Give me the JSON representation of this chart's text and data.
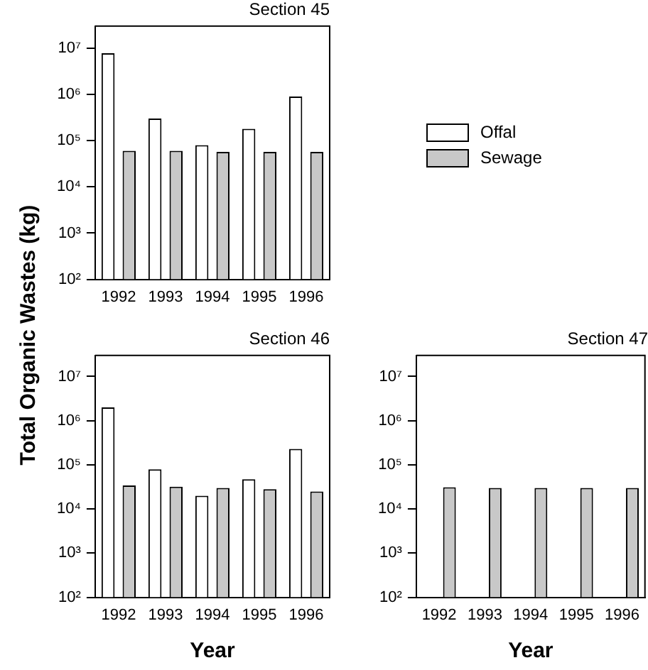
{
  "chart_data": [
    {
      "type": "bar",
      "title": "Section 45",
      "ylabel": "Total Organic Wastes (kg)",
      "categories": [
        "1992",
        "1993",
        "1994",
        "1995",
        "1996"
      ],
      "log": true,
      "ylim": [
        100,
        30000000
      ],
      "yticks": [
        {
          "value": 100,
          "label": "10²"
        },
        {
          "value": 1000,
          "label": "10³"
        },
        {
          "value": 10000,
          "label": "10⁴"
        },
        {
          "value": 100000,
          "label": "10⁵"
        },
        {
          "value": 1000000,
          "label": "10⁶"
        },
        {
          "value": 10000000,
          "label": "10⁷"
        }
      ],
      "grid": false,
      "legend": "right",
      "series": [
        {
          "name": "Offal",
          "color": "#ffffff",
          "values": [
            7800000,
            300000,
            80000,
            180000,
            900000
          ]
        },
        {
          "name": "Sewage",
          "color": "#c8c8c8",
          "values": [
            60000,
            60000,
            57000,
            57000,
            57000
          ]
        }
      ]
    },
    {
      "type": "bar",
      "title": "Section 46",
      "xlabel": "Year",
      "categories": [
        "1992",
        "1993",
        "1994",
        "1995",
        "1996"
      ],
      "log": true,
      "ylim": [
        100,
        30000000
      ],
      "yticks": [
        {
          "value": 100,
          "label": "10²"
        },
        {
          "value": 1000,
          "label": "10³"
        },
        {
          "value": 10000,
          "label": "10⁴"
        },
        {
          "value": 100000,
          "label": "10⁵"
        },
        {
          "value": 1000000,
          "label": "10⁶"
        },
        {
          "value": 10000000,
          "label": "10⁷"
        }
      ],
      "grid": false,
      "series": [
        {
          "color": "#ffffff",
          "values": [
            2000000,
            79000,
            20000,
            47000,
            230000
          ]
        },
        {
          "color": "#c8c8c8",
          "values": [
            34000,
            32000,
            30000,
            28000,
            25000
          ]
        }
      ]
    },
    {
      "type": "bar",
      "title": "Section 47",
      "xlabel": "Year",
      "categories": [
        "1992",
        "1993",
        "1994",
        "1995",
        "1996"
      ],
      "log": true,
      "ylim": [
        100,
        30000000
      ],
      "yticks": [
        {
          "value": 100,
          "label": "10²"
        },
        {
          "value": 1000,
          "label": "10³"
        },
        {
          "value": 10000,
          "label": "10⁴"
        },
        {
          "value": 100000,
          "label": "10⁵"
        },
        {
          "value": 1000000,
          "label": "10⁶"
        },
        {
          "value": 10000000,
          "label": "10⁷"
        }
      ],
      "grid": false,
      "series": [
        {
          "color": "#ffffff",
          "values": [
            null,
            null,
            null,
            null,
            null
          ]
        },
        {
          "color": "#c8c8c8",
          "values": [
            31000,
            30000,
            30000,
            30000,
            30000
          ]
        }
      ]
    }
  ]
}
